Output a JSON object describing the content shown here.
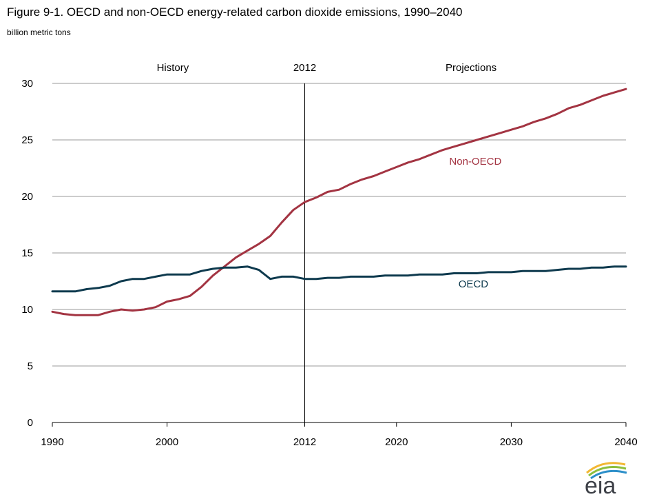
{
  "chart_data": {
    "type": "line",
    "title": "Figure 9-1. OECD and non-OECD energy-related carbon dioxide emissions, 1990–2040",
    "ylabel": "billion metric tons",
    "xlabel": "",
    "xlim": [
      1990,
      2040
    ],
    "ylim": [
      0,
      30
    ],
    "x_ticks": [
      1990,
      2000,
      2012,
      2020,
      2030,
      2040
    ],
    "y_ticks": [
      0,
      5,
      10,
      15,
      20,
      25,
      30
    ],
    "grid": "horizontal",
    "reference_line": {
      "x": 2012,
      "label": "2012"
    },
    "annotations": {
      "left": "History",
      "right": "Projections"
    },
    "series": [
      {
        "name": "Non-OECD",
        "color": "#a33442",
        "x": [
          1990,
          1991,
          1992,
          1993,
          1994,
          1995,
          1996,
          1997,
          1998,
          1999,
          2000,
          2001,
          2002,
          2003,
          2004,
          2005,
          2006,
          2007,
          2008,
          2009,
          2010,
          2011,
          2012,
          2013,
          2014,
          2015,
          2016,
          2017,
          2018,
          2019,
          2020,
          2021,
          2022,
          2023,
          2024,
          2025,
          2026,
          2027,
          2028,
          2029,
          2030,
          2031,
          2032,
          2033,
          2034,
          2035,
          2036,
          2037,
          2038,
          2039,
          2040
        ],
        "values": [
          9.8,
          9.6,
          9.5,
          9.5,
          9.5,
          9.8,
          10.0,
          9.9,
          10.0,
          10.2,
          10.7,
          10.9,
          11.2,
          12.0,
          13.0,
          13.8,
          14.6,
          15.2,
          15.8,
          16.5,
          17.7,
          18.8,
          19.5,
          19.9,
          20.4,
          20.6,
          21.1,
          21.5,
          21.8,
          22.2,
          22.6,
          23.0,
          23.3,
          23.7,
          24.1,
          24.4,
          24.7,
          25.0,
          25.3,
          25.6,
          25.9,
          26.2,
          26.6,
          26.9,
          27.3,
          27.8,
          28.1,
          28.5,
          28.9,
          29.2,
          29.5
        ]
      },
      {
        "name": "OECD",
        "color": "#0e3a4e",
        "x": [
          1990,
          1991,
          1992,
          1993,
          1994,
          1995,
          1996,
          1997,
          1998,
          1999,
          2000,
          2001,
          2002,
          2003,
          2004,
          2005,
          2006,
          2007,
          2008,
          2009,
          2010,
          2011,
          2012,
          2013,
          2014,
          2015,
          2016,
          2017,
          2018,
          2019,
          2020,
          2021,
          2022,
          2023,
          2024,
          2025,
          2026,
          2027,
          2028,
          2029,
          2030,
          2031,
          2032,
          2033,
          2034,
          2035,
          2036,
          2037,
          2038,
          2039,
          2040
        ],
        "values": [
          11.6,
          11.6,
          11.6,
          11.8,
          11.9,
          12.1,
          12.5,
          12.7,
          12.7,
          12.9,
          13.1,
          13.1,
          13.1,
          13.4,
          13.6,
          13.7,
          13.7,
          13.8,
          13.5,
          12.7,
          12.9,
          12.9,
          12.7,
          12.7,
          12.8,
          12.8,
          12.9,
          12.9,
          12.9,
          13.0,
          13.0,
          13.0,
          13.1,
          13.1,
          13.1,
          13.2,
          13.2,
          13.2,
          13.3,
          13.3,
          13.3,
          13.4,
          13.4,
          13.4,
          13.5,
          13.6,
          13.6,
          13.7,
          13.7,
          13.8,
          13.8
        ]
      }
    ]
  },
  "logo_text": "eia"
}
